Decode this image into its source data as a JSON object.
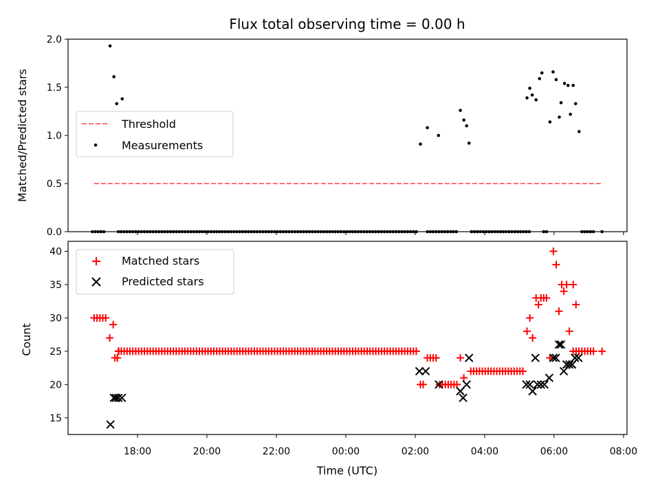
{
  "chart_data": {
    "title": "Flux total observing time = 0.00 h",
    "xlabel": "Time (UTC)",
    "x_tick_labels": [
      "18:00",
      "20:00",
      "22:00",
      "00:00",
      "02:00",
      "04:00",
      "06:00",
      "08:00"
    ],
    "x_tick_hours": [
      18,
      20,
      22,
      24,
      26,
      28,
      30,
      32
    ],
    "xlim_hours": [
      16.0,
      32.1
    ],
    "panels": [
      {
        "type": "scatter",
        "ylabel": "Matched/Predicted stars",
        "ylim": [
          0.0,
          2.0
        ],
        "y_ticks": [
          0.0,
          0.5,
          1.0,
          1.5,
          2.0
        ],
        "y_tick_labels": [
          "0.0",
          "0.5",
          "1.0",
          "1.5",
          "2.0"
        ],
        "legend_position": "center-left",
        "threshold": {
          "name": "Threshold",
          "value": 0.5,
          "x_range_hours": [
            16.75,
            31.4
          ],
          "color": "#ff7070"
        },
        "measurements": {
          "name": "Measurements",
          "color": "#000000",
          "points": [
            [
              17.21,
              1.93
            ],
            [
              17.32,
              1.61
            ],
            [
              17.4,
              1.33
            ],
            [
              17.56,
              1.38
            ],
            [
              26.15,
              0.91
            ],
            [
              26.35,
              1.08
            ],
            [
              26.67,
              1.0
            ],
            [
              27.3,
              1.26
            ],
            [
              27.4,
              1.16
            ],
            [
              27.48,
              1.1
            ],
            [
              27.55,
              0.92
            ],
            [
              29.22,
              1.39
            ],
            [
              29.3,
              1.49
            ],
            [
              29.37,
              1.42
            ],
            [
              29.48,
              1.37
            ],
            [
              29.58,
              1.59
            ],
            [
              29.65,
              1.65
            ],
            [
              29.88,
              1.14
            ],
            [
              29.97,
              1.66
            ],
            [
              30.06,
              1.58
            ],
            [
              30.15,
              1.19
            ],
            [
              30.2,
              1.34
            ],
            [
              30.3,
              1.54
            ],
            [
              30.4,
              1.52
            ],
            [
              30.47,
              1.22
            ],
            [
              30.55,
              1.52
            ],
            [
              30.62,
              1.33
            ],
            [
              30.72,
              1.04
            ]
          ],
          "zero_segments_hours": [
            [
              16.7,
              17.1
            ],
            [
              17.45,
              26.03
            ],
            [
              26.35,
              27.25
            ],
            [
              27.62,
              29.35
            ],
            [
              29.7,
              29.82
            ],
            [
              30.8,
              31.2
            ]
          ],
          "zero_points_hours": [
            31.38
          ]
        }
      },
      {
        "type": "scatter",
        "ylabel": "Count",
        "ylim": [
          12.5,
          41.5
        ],
        "y_ticks": [
          15,
          20,
          25,
          30,
          35,
          40
        ],
        "y_tick_labels": [
          "15",
          "20",
          "25",
          "30",
          "35",
          "40"
        ],
        "legend_position": "top-left",
        "matched": {
          "name": "Matched stars",
          "color": "#ff0000",
          "runs": [
            {
              "from": 16.75,
              "to": 17.1,
              "value": 30
            },
            {
              "from": 17.45,
              "to": 26.03,
              "value": 25
            },
            {
              "from": 26.35,
              "to": 26.6,
              "value": 24
            },
            {
              "from": 26.7,
              "to": 27.2,
              "value": 20
            },
            {
              "from": 27.6,
              "to": 29.15,
              "value": 22
            },
            {
              "from": 30.55,
              "to": 31.2,
              "value": 25
            }
          ],
          "points": [
            [
              17.2,
              27
            ],
            [
              17.3,
              29
            ],
            [
              17.35,
              24
            ],
            [
              17.42,
              24
            ],
            [
              17.46,
              25
            ],
            [
              26.15,
              20
            ],
            [
              26.23,
              20
            ],
            [
              27.3,
              24
            ],
            [
              27.4,
              21
            ],
            [
              29.22,
              28
            ],
            [
              29.3,
              30
            ],
            [
              29.38,
              27
            ],
            [
              29.48,
              33
            ],
            [
              29.55,
              32
            ],
            [
              29.62,
              33
            ],
            [
              29.7,
              33
            ],
            [
              29.78,
              33
            ],
            [
              29.88,
              24
            ],
            [
              29.98,
              40
            ],
            [
              30.06,
              38
            ],
            [
              30.14,
              31
            ],
            [
              30.22,
              35
            ],
            [
              30.28,
              34
            ],
            [
              30.36,
              35
            ],
            [
              30.44,
              28
            ],
            [
              30.55,
              35
            ],
            [
              30.63,
              32
            ],
            [
              31.38,
              25
            ]
          ]
        },
        "predicted": {
          "name": "Predicted stars",
          "color": "#000000",
          "points": [
            [
              17.22,
              14
            ],
            [
              17.32,
              18
            ],
            [
              17.38,
              18
            ],
            [
              17.45,
              18
            ],
            [
              17.55,
              18
            ],
            [
              26.12,
              22
            ],
            [
              26.3,
              22
            ],
            [
              26.68,
              20
            ],
            [
              27.3,
              19
            ],
            [
              27.38,
              18
            ],
            [
              27.48,
              20
            ],
            [
              27.55,
              24
            ],
            [
              29.2,
              20
            ],
            [
              29.3,
              20
            ],
            [
              29.38,
              19
            ],
            [
              29.46,
              24
            ],
            [
              29.52,
              20
            ],
            [
              29.62,
              20
            ],
            [
              29.72,
              20
            ],
            [
              29.86,
              21
            ],
            [
              29.98,
              24
            ],
            [
              30.05,
              24
            ],
            [
              30.14,
              26
            ],
            [
              30.2,
              26
            ],
            [
              30.28,
              22
            ],
            [
              30.36,
              23
            ],
            [
              30.44,
              23
            ],
            [
              30.52,
              23
            ],
            [
              30.6,
              24
            ],
            [
              30.7,
              24
            ]
          ]
        }
      }
    ]
  }
}
